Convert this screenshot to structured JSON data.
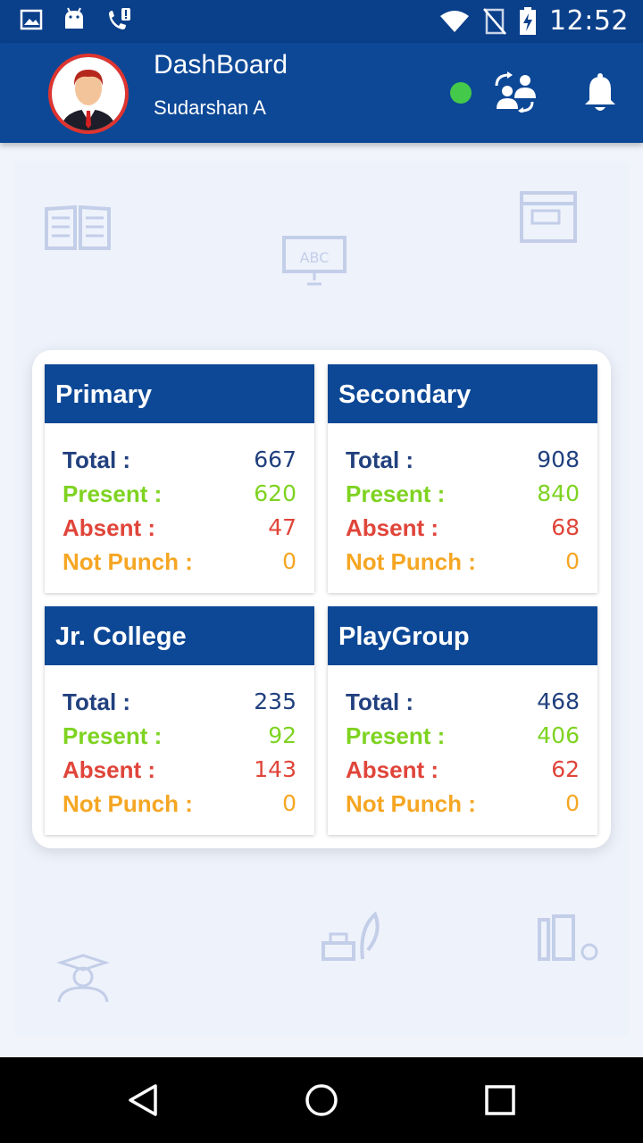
{
  "status_bar": {
    "time": "12:52",
    "left_icons": [
      "image-icon",
      "android-icon",
      "phone-alert-icon"
    ],
    "right_icons": [
      "wifi-icon",
      "no-sim-icon",
      "battery-charging-icon"
    ]
  },
  "app_bar": {
    "title": "DashBoard",
    "user_name": "Sudarshan A",
    "online_status_color": "#44c94a",
    "actions": [
      "switch-user-icon",
      "bell-icon"
    ]
  },
  "cards": [
    {
      "title": "Primary",
      "rows": [
        {
          "label": "Total :",
          "value": "667"
        },
        {
          "label": "Present :",
          "value": "620"
        },
        {
          "label": "Absent :",
          "value": "47"
        },
        {
          "label": "Not Punch :",
          "value": "0"
        }
      ]
    },
    {
      "title": "Secondary",
      "rows": [
        {
          "label": "Total :",
          "value": "908"
        },
        {
          "label": "Present :",
          "value": "840"
        },
        {
          "label": "Absent :",
          "value": "68"
        },
        {
          "label": "Not Punch :",
          "value": "0"
        }
      ]
    },
    {
      "title": "Jr. College",
      "rows": [
        {
          "label": "Total :",
          "value": "235"
        },
        {
          "label": "Present :",
          "value": "92"
        },
        {
          "label": "Absent :",
          "value": "143"
        },
        {
          "label": "Not Punch :",
          "value": "0"
        }
      ]
    },
    {
      "title": "PlayGroup",
      "rows": [
        {
          "label": "Total :",
          "value": "468"
        },
        {
          "label": "Present :",
          "value": "406"
        },
        {
          "label": "Absent :",
          "value": "62"
        },
        {
          "label": "Not Punch :",
          "value": "0"
        }
      ]
    }
  ],
  "colors": {
    "primary": "#0d4896",
    "total": "#21407e",
    "present": "#7ed321",
    "absent": "#e0453a",
    "not_punch": "#f5a623"
  },
  "nav_bar": [
    "back-icon",
    "home-icon",
    "recents-icon"
  ]
}
